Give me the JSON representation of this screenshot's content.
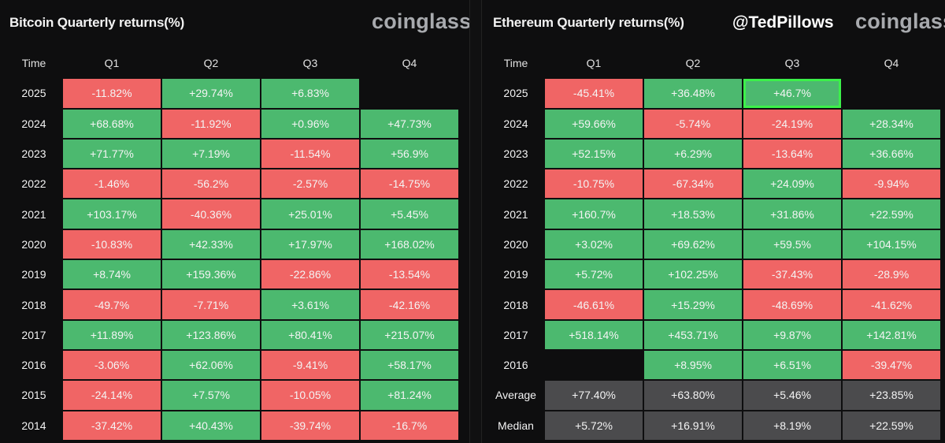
{
  "chart_data": [
    {
      "type": "table",
      "title": "Bitcoin Quarterly returns(%)",
      "watermark": "coinglass",
      "columns": [
        "Time",
        "Q1",
        "Q2",
        "Q3",
        "Q4"
      ],
      "rows": [
        {
          "label": "2025",
          "values": [
            "-11.82%",
            "+29.74%",
            "+6.83%",
            ""
          ]
        },
        {
          "label": "2024",
          "values": [
            "+68.68%",
            "-11.92%",
            "+0.96%",
            "+47.73%"
          ]
        },
        {
          "label": "2023",
          "values": [
            "+71.77%",
            "+7.19%",
            "-11.54%",
            "+56.9%"
          ]
        },
        {
          "label": "2022",
          "values": [
            "-1.46%",
            "-56.2%",
            "-2.57%",
            "-14.75%"
          ]
        },
        {
          "label": "2021",
          "values": [
            "+103.17%",
            "-40.36%",
            "+25.01%",
            "+5.45%"
          ]
        },
        {
          "label": "2020",
          "values": [
            "-10.83%",
            "+42.33%",
            "+17.97%",
            "+168.02%"
          ]
        },
        {
          "label": "2019",
          "values": [
            "+8.74%",
            "+159.36%",
            "-22.86%",
            "-13.54%"
          ]
        },
        {
          "label": "2018",
          "values": [
            "-49.7%",
            "-7.71%",
            "+3.61%",
            "-42.16%"
          ]
        },
        {
          "label": "2017",
          "values": [
            "+11.89%",
            "+123.86%",
            "+80.41%",
            "+215.07%"
          ]
        },
        {
          "label": "2016",
          "values": [
            "-3.06%",
            "+62.06%",
            "-9.41%",
            "+58.17%"
          ]
        },
        {
          "label": "2015",
          "values": [
            "-24.14%",
            "+7.57%",
            "-10.05%",
            "+81.24%"
          ]
        },
        {
          "label": "2014",
          "values": [
            "-37.42%",
            "+40.43%",
            "-39.74%",
            "-16.7%"
          ]
        }
      ]
    },
    {
      "type": "table",
      "title": "Ethereum Quarterly returns(%)",
      "handle": "@TedPillows",
      "watermark": "coinglass",
      "highlight": {
        "row": "2025",
        "col": "Q3"
      },
      "columns": [
        "Time",
        "Q1",
        "Q2",
        "Q3",
        "Q4"
      ],
      "rows": [
        {
          "label": "2025",
          "values": [
            "-45.41%",
            "+36.48%",
            "+46.7%",
            ""
          ]
        },
        {
          "label": "2024",
          "values": [
            "+59.66%",
            "-5.74%",
            "-24.19%",
            "+28.34%"
          ]
        },
        {
          "label": "2023",
          "values": [
            "+52.15%",
            "+6.29%",
            "-13.64%",
            "+36.66%"
          ]
        },
        {
          "label": "2022",
          "values": [
            "-10.75%",
            "-67.34%",
            "+24.09%",
            "-9.94%"
          ]
        },
        {
          "label": "2021",
          "values": [
            "+160.7%",
            "+18.53%",
            "+31.86%",
            "+22.59%"
          ]
        },
        {
          "label": "2020",
          "values": [
            "+3.02%",
            "+69.62%",
            "+59.5%",
            "+104.15%"
          ]
        },
        {
          "label": "2019",
          "values": [
            "+5.72%",
            "+102.25%",
            "-37.43%",
            "-28.9%"
          ]
        },
        {
          "label": "2018",
          "values": [
            "-46.61%",
            "+15.29%",
            "-48.69%",
            "-41.62%"
          ]
        },
        {
          "label": "2017",
          "values": [
            "+518.14%",
            "+453.71%",
            "+9.87%",
            "+142.81%"
          ]
        },
        {
          "label": "2016",
          "values": [
            "",
            "+8.95%",
            "+6.51%",
            "-39.47%"
          ]
        },
        {
          "label": "Average",
          "values": [
            "+77.40%",
            "+63.80%",
            "+5.46%",
            "+23.85%"
          ],
          "stat": true
        },
        {
          "label": "Median",
          "values": [
            "+5.72%",
            "+16.91%",
            "+8.19%",
            "+22.59%"
          ],
          "stat": true
        }
      ]
    }
  ],
  "colors": {
    "positive": "#4cb96f",
    "negative": "#f06565",
    "stat": "#4b4b4d",
    "highlight_border": "#3cf04a",
    "background": "#0e0e0f"
  }
}
